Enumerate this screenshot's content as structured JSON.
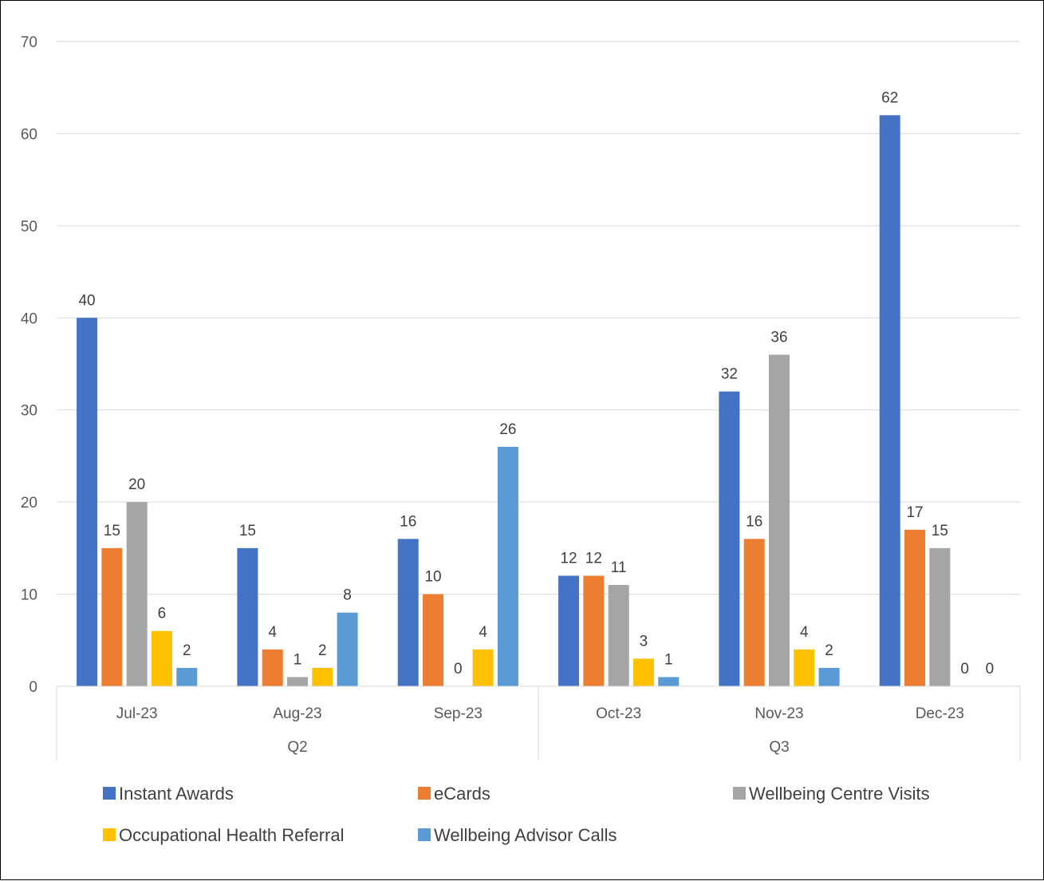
{
  "chart_data": {
    "type": "bar",
    "title": "",
    "xlabel": "",
    "ylabel": "",
    "ylim": [
      0,
      70
    ],
    "yticks": [
      0,
      10,
      20,
      30,
      40,
      50,
      60,
      70
    ],
    "grid": true,
    "legend_position": "bottom",
    "categories": [
      "Jul-23",
      "Aug-23",
      "Sep-23",
      "Oct-23",
      "Nov-23",
      "Dec-23"
    ],
    "groups": [
      {
        "label": "Q2",
        "categories": [
          "Jul-23",
          "Aug-23",
          "Sep-23"
        ]
      },
      {
        "label": "Q3",
        "categories": [
          "Oct-23",
          "Nov-23",
          "Dec-23"
        ]
      }
    ],
    "series": [
      {
        "name": "Instant Awards",
        "color": "#4472C4",
        "values": [
          40,
          15,
          16,
          12,
          32,
          62
        ]
      },
      {
        "name": "eCards",
        "color": "#ED7D31",
        "values": [
          15,
          4,
          10,
          12,
          16,
          17
        ]
      },
      {
        "name": "Wellbeing Centre Visits",
        "color": "#A5A5A5",
        "values": [
          20,
          1,
          0,
          11,
          36,
          15
        ]
      },
      {
        "name": "Occupational Health Referral",
        "color": "#FFC000",
        "values": [
          6,
          2,
          4,
          3,
          4,
          null
        ]
      },
      {
        "name": "Wellbeing Advisor Calls",
        "color": "#5B9BD5",
        "values": [
          2,
          8,
          26,
          1,
          2,
          null
        ]
      }
    ],
    "data_labels": [
      [
        "40",
        "15",
        "20",
        "6",
        "2"
      ],
      [
        "15",
        "4",
        "1",
        "2",
        "8"
      ],
      [
        "16",
        "10",
        "0",
        "4",
        "26"
      ],
      [
        "12",
        "12",
        "11",
        "3",
        "1"
      ],
      [
        "32",
        "16",
        "36",
        "4",
        "2"
      ],
      [
        "62",
        "17",
        "15",
        "0",
        "0"
      ]
    ]
  }
}
